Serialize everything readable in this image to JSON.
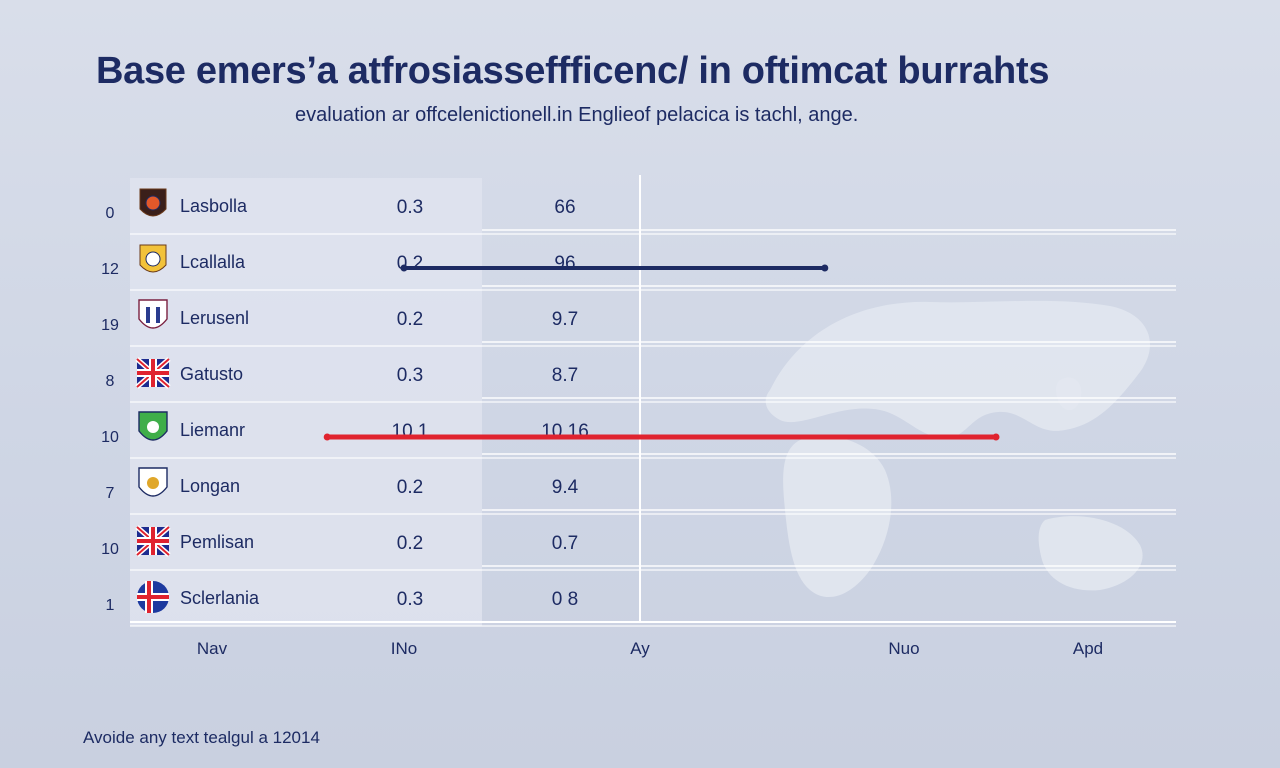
{
  "chart_data": {
    "type": "table",
    "title": "Base emers’a atfrosiasseffficenc/ in oftimcat burrahts",
    "subtitle": "evaluation ar offcelenictionell.in Englieof pelacica is tachl, ange.",
    "footnote": "Avoide any text tealgul a 12014",
    "x_tick_labels": [
      "Nav",
      "INo",
      "Ay",
      "Nuo",
      "Apd"
    ],
    "rows": [
      {
        "rank": "0",
        "team": "Lasbolla",
        "v1": "0.3",
        "v2": "66",
        "crest": "crest-icon"
      },
      {
        "rank": "12",
        "team": "Lcallalla",
        "v1": "0.2",
        "v2": "96",
        "crest": "crest-icon"
      },
      {
        "rank": "19",
        "team": "Lerusenl",
        "v1": "0.2",
        "v2": "9.7",
        "crest": "shield-icon"
      },
      {
        "rank": "8",
        "team": "Gatusto",
        "v1": "0.3",
        "v2": "8.7",
        "crest": "union-flag-icon"
      },
      {
        "rank": "10",
        "team": "Liemanr",
        "v1": "10.1",
        "v2": "10.16",
        "crest": "shield-icon"
      },
      {
        "rank": "7",
        "team": "Longan",
        "v1": "0.2",
        "v2": "9.4",
        "crest": "shield-icon"
      },
      {
        "rank": "10",
        "team": "Pemlisan",
        "v1": "0.2",
        "v2": "0.7",
        "crest": "union-flag-icon"
      },
      {
        "rank": "1",
        "team": "Sclerlania",
        "v1": "0.3",
        "v2": "0 8",
        "crest": "nordic-flag-icon"
      }
    ],
    "highlight_lines": [
      {
        "row_index": 1,
        "color": "#1d2b63",
        "x_start": 1.0,
        "x_end": 2.7
      },
      {
        "row_index": 4,
        "color": "#e0232f",
        "x_start": 0.6,
        "x_end": 3.5
      }
    ],
    "grid": true
  },
  "colors": {
    "text": "#1d2b63",
    "navy_line": "#1d2b63",
    "red_line": "#e0232f",
    "background": "#d3d9e7"
  }
}
